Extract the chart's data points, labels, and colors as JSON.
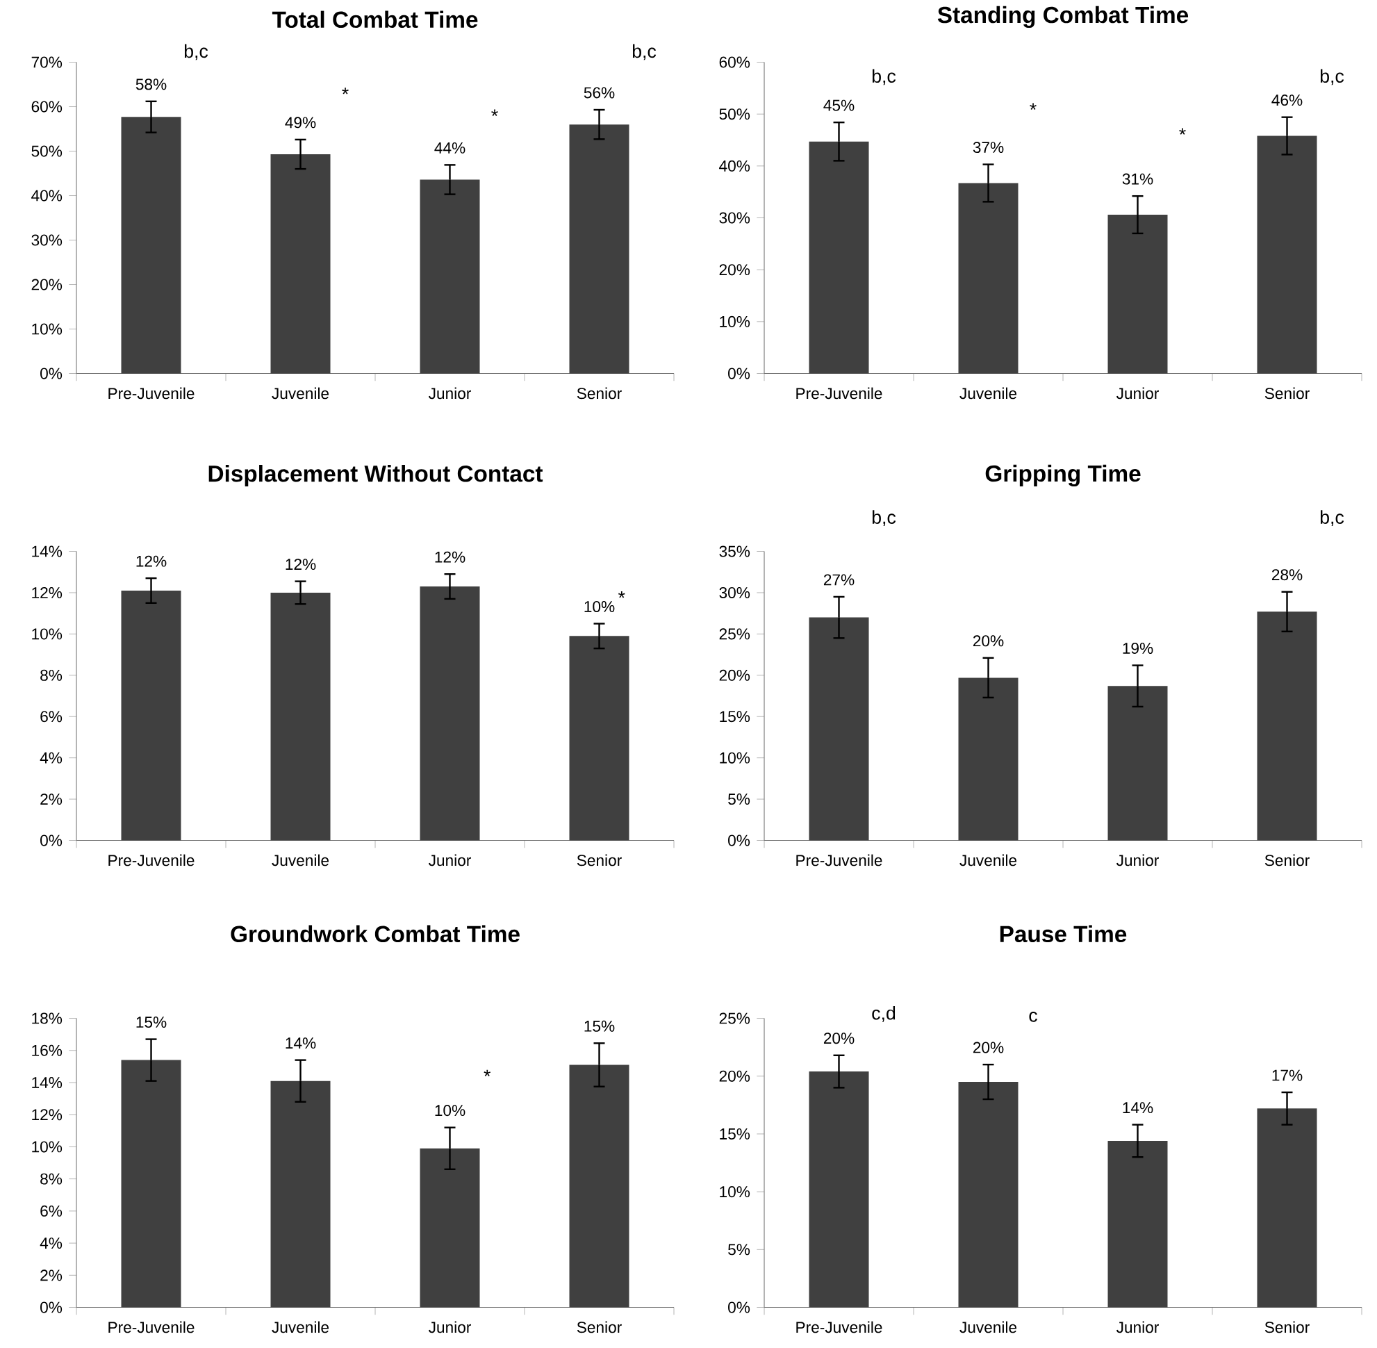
{
  "chart_data": [
    {
      "type": "bar",
      "title": "Total Combat Time",
      "categories": [
        "Pre-Juvenile",
        "Juvenile",
        "Junior",
        "Senior"
      ],
      "values": [
        57.7,
        49.3,
        43.6,
        56.0
      ],
      "errors": [
        3.5,
        3.3,
        3.3,
        3.3
      ],
      "value_labels": [
        "58%",
        "49%",
        "44%",
        "56%"
      ],
      "color": "#404040",
      "ylim": [
        0,
        70
      ],
      "yticks": [
        {
          "value": 0,
          "label": "0%"
        },
        {
          "value": 10,
          "label": "10%"
        },
        {
          "value": 20,
          "label": "20%"
        },
        {
          "value": 30,
          "label": "30%"
        },
        {
          "value": 40,
          "label": "40%"
        },
        {
          "value": 50,
          "label": "50%"
        },
        {
          "value": 60,
          "label": "60%"
        },
        {
          "value": 70,
          "label": "70%"
        }
      ],
      "annotations": [
        "b,c",
        "*",
        "*",
        "b,c"
      ]
    },
    {
      "type": "bar",
      "title": "Standing Combat Time",
      "categories": [
        "Pre-Juvenile",
        "Juvenile",
        "Junior",
        "Senior"
      ],
      "values": [
        44.7,
        36.7,
        30.6,
        45.8
      ],
      "errors": [
        3.7,
        3.6,
        3.6,
        3.6
      ],
      "value_labels": [
        "45%",
        "37%",
        "31%",
        "46%"
      ],
      "color": "#404040",
      "ylim": [
        0,
        60
      ],
      "yticks": [
        {
          "value": 0,
          "label": "0%"
        },
        {
          "value": 10,
          "label": "10%"
        },
        {
          "value": 20,
          "label": "20%"
        },
        {
          "value": 30,
          "label": "30%"
        },
        {
          "value": 40,
          "label": "40%"
        },
        {
          "value": 50,
          "label": "50%"
        },
        {
          "value": 60,
          "label": "60%"
        }
      ],
      "annotations": [
        "b,c",
        "*",
        "*",
        "b,c"
      ]
    },
    {
      "type": "bar",
      "title": "Displacement Without Contact",
      "categories": [
        "Pre-Juvenile",
        "Juvenile",
        "Junior",
        "Senior"
      ],
      "values": [
        12.1,
        12.0,
        12.3,
        9.9
      ],
      "errors": [
        0.6,
        0.55,
        0.6,
        0.6
      ],
      "value_labels": [
        "12%",
        "12%",
        "12%",
        "10%"
      ],
      "color": "#404040",
      "ylim": [
        0,
        14
      ],
      "yticks": [
        {
          "value": 0,
          "label": "0%"
        },
        {
          "value": 2,
          "label": "2%"
        },
        {
          "value": 4,
          "label": "4%"
        },
        {
          "value": 6,
          "label": "6%"
        },
        {
          "value": 8,
          "label": "8%"
        },
        {
          "value": 10,
          "label": "10%"
        },
        {
          "value": 12,
          "label": "12%"
        },
        {
          "value": 14,
          "label": "14%"
        }
      ],
      "annotations": [
        "*"
      ]
    },
    {
      "type": "bar",
      "title": "Gripping Time",
      "categories": [
        "Pre-Juvenile",
        "Juvenile",
        "Junior",
        "Senior"
      ],
      "values": [
        27.0,
        19.7,
        18.7,
        27.7
      ],
      "errors": [
        2.5,
        2.4,
        2.5,
        2.4
      ],
      "value_labels": [
        "27%",
        "20%",
        "19%",
        "28%"
      ],
      "color": "#404040",
      "ylim": [
        0,
        35
      ],
      "yticks": [
        {
          "value": 0,
          "label": "0%"
        },
        {
          "value": 5,
          "label": "5%"
        },
        {
          "value": 10,
          "label": "10%"
        },
        {
          "value": 15,
          "label": "15%"
        },
        {
          "value": 20,
          "label": "20%"
        },
        {
          "value": 25,
          "label": "25%"
        },
        {
          "value": 30,
          "label": "30%"
        },
        {
          "value": 35,
          "label": "35%"
        }
      ],
      "annotations": [
        "b,c",
        "b,c"
      ]
    },
    {
      "type": "bar",
      "title": "Groundwork Combat Time",
      "categories": [
        "Pre-Juvenile",
        "Juvenile",
        "Junior",
        "Senior"
      ],
      "values": [
        15.4,
        14.1,
        9.9,
        15.1
      ],
      "errors": [
        1.3,
        1.3,
        1.3,
        1.35
      ],
      "value_labels": [
        "15%",
        "14%",
        "10%",
        "15%"
      ],
      "color": "#404040",
      "ylim": [
        0,
        18
      ],
      "yticks": [
        {
          "value": 0,
          "label": "0%"
        },
        {
          "value": 2,
          "label": "2%"
        },
        {
          "value": 4,
          "label": "4%"
        },
        {
          "value": 6,
          "label": "6%"
        },
        {
          "value": 8,
          "label": "8%"
        },
        {
          "value": 10,
          "label": "10%"
        },
        {
          "value": 12,
          "label": "12%"
        },
        {
          "value": 14,
          "label": "14%"
        },
        {
          "value": 16,
          "label": "16%"
        },
        {
          "value": 18,
          "label": "18%"
        }
      ],
      "annotations": [
        "*"
      ]
    },
    {
      "type": "bar",
      "title": "Pause Time",
      "categories": [
        "Pre-Juvenile",
        "Juvenile",
        "Junior",
        "Senior"
      ],
      "values": [
        20.4,
        19.5,
        14.4,
        17.2
      ],
      "errors": [
        1.4,
        1.5,
        1.4,
        1.4
      ],
      "value_labels": [
        "20%",
        "20%",
        "14%",
        "17%"
      ],
      "color": "#404040",
      "ylim": [
        0,
        25
      ],
      "yticks": [
        {
          "value": 0,
          "label": "0%"
        },
        {
          "value": 5,
          "label": "5%"
        },
        {
          "value": 10,
          "label": "10%"
        },
        {
          "value": 15,
          "label": "15%"
        },
        {
          "value": 20,
          "label": "20%"
        },
        {
          "value": 25,
          "label": "25%"
        }
      ],
      "annotations": [
        "c,d",
        "c"
      ]
    }
  ]
}
